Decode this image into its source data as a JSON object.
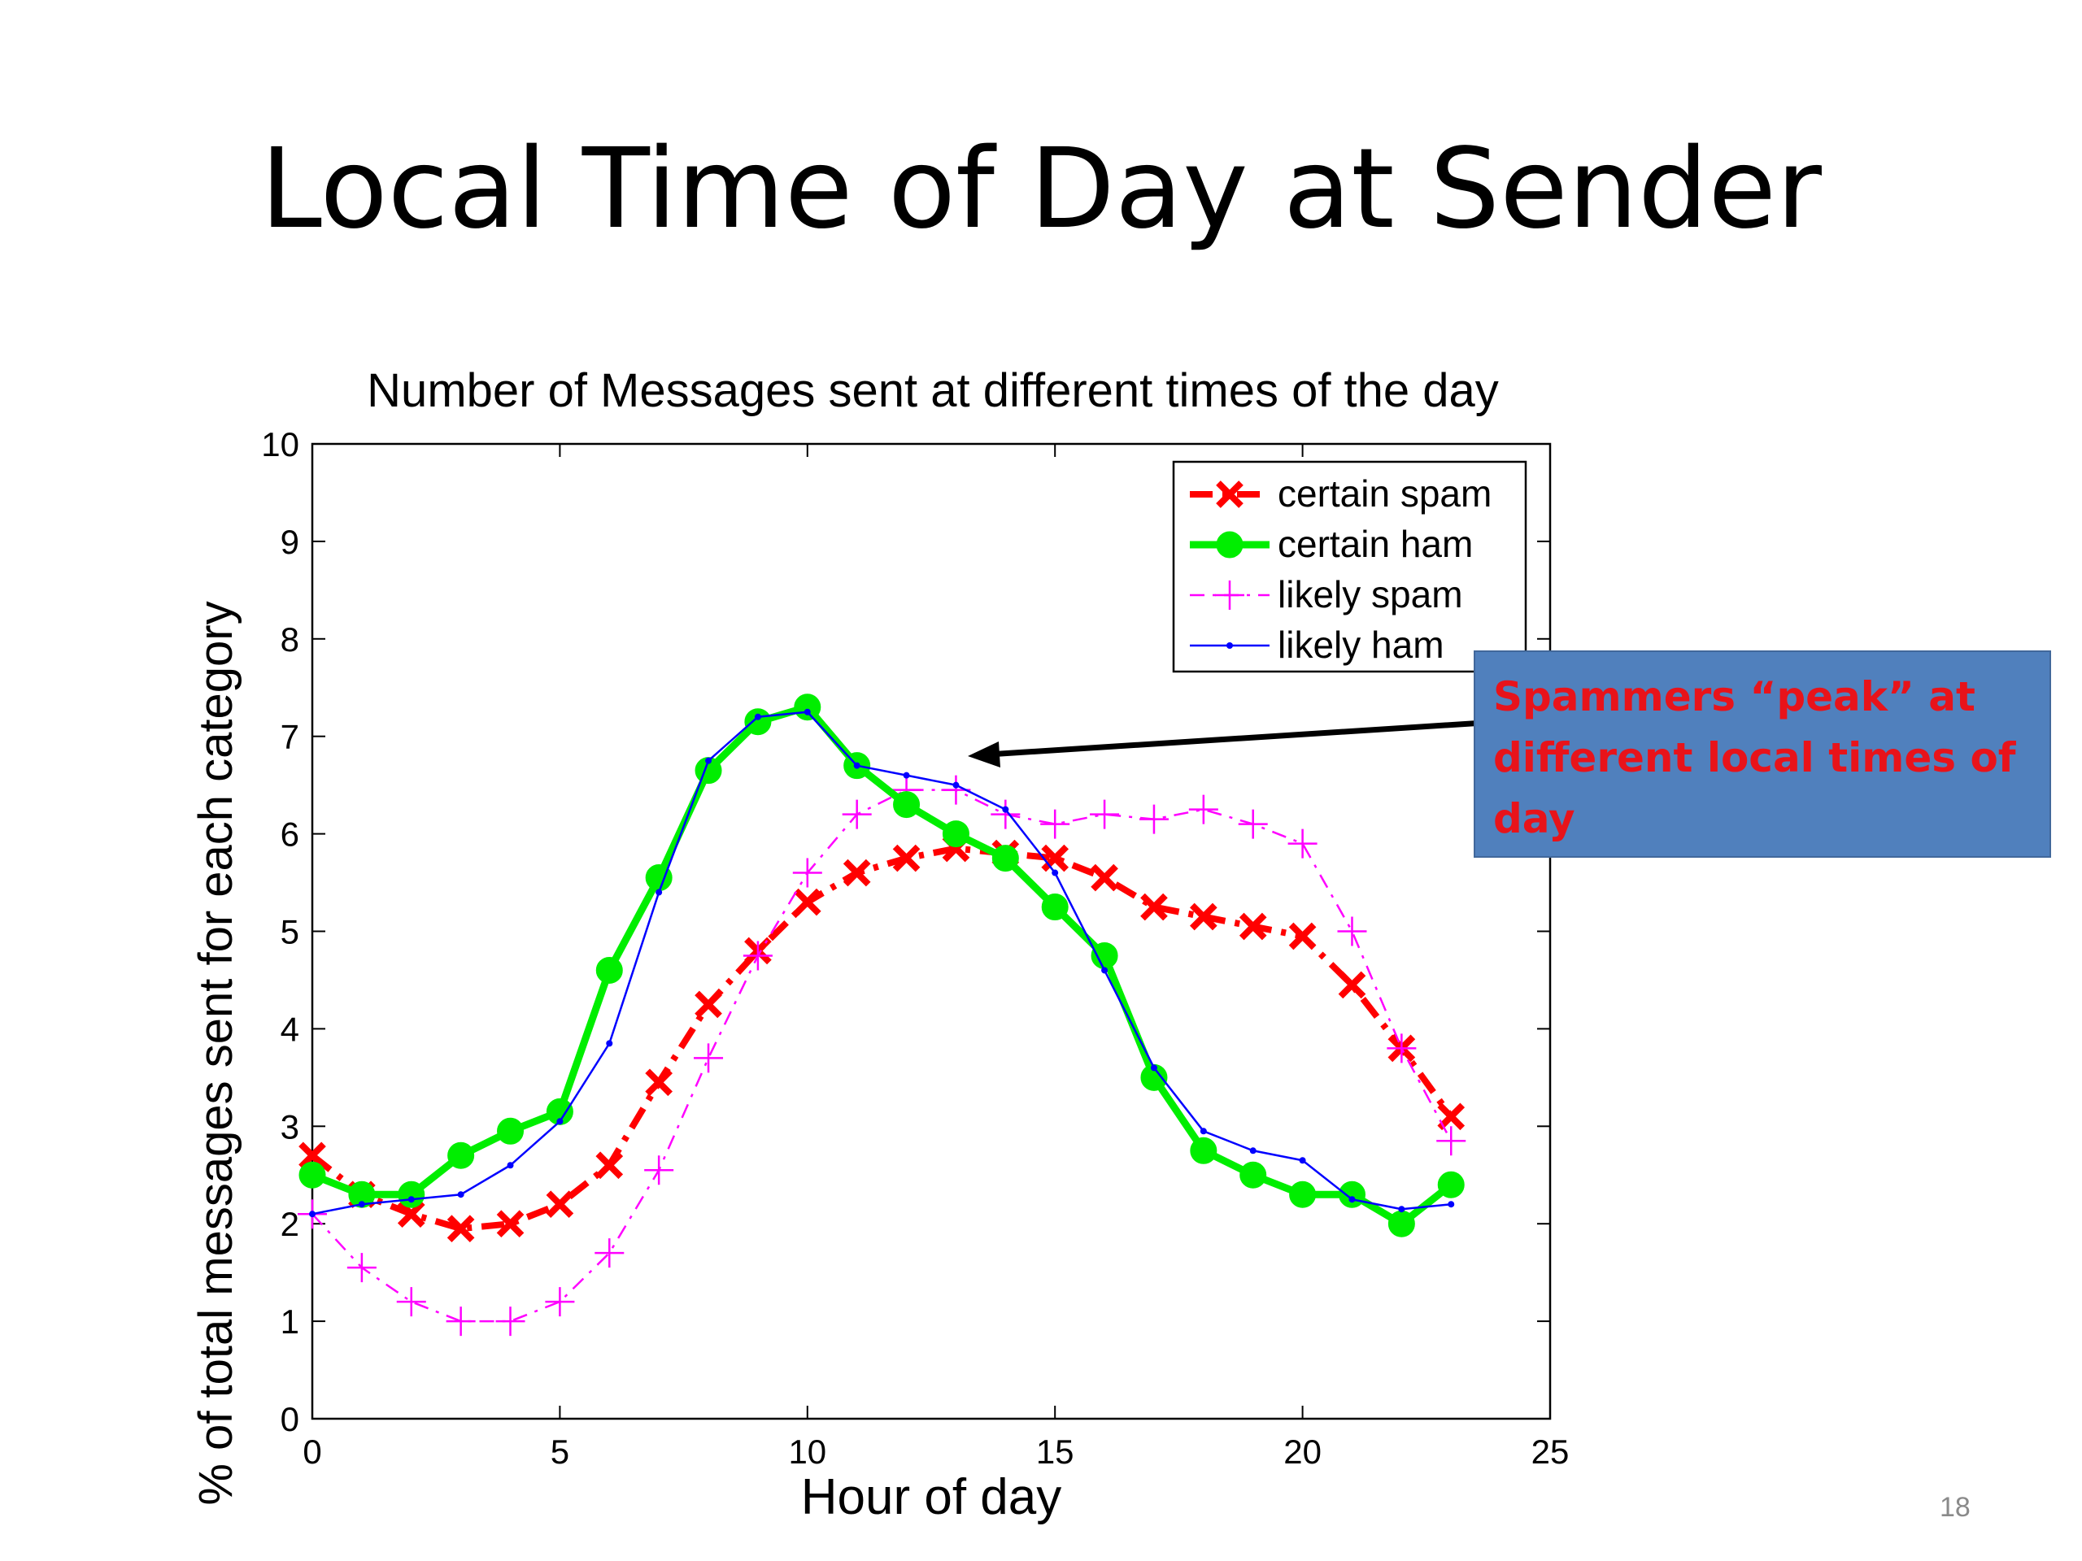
{
  "slide": {
    "title": "Local Time of Day at Sender",
    "page_number": "18",
    "callout": "Spammers “peak” at different local times of day"
  },
  "chart_data": {
    "type": "line",
    "title": "Number of Messages sent at different times of the day",
    "xlabel": "Hour of day",
    "ylabel": "% of total messages sent for each category",
    "xlim": [
      0,
      25
    ],
    "ylim": [
      0,
      10
    ],
    "xticks": [
      0,
      5,
      10,
      15,
      20,
      25
    ],
    "yticks": [
      0,
      1,
      2,
      3,
      4,
      5,
      6,
      7,
      8,
      9,
      10
    ],
    "grid": false,
    "legend_position": "top-right",
    "x": [
      0,
      1,
      2,
      3,
      4,
      5,
      6,
      7,
      8,
      9,
      10,
      11,
      12,
      13,
      14,
      15,
      16,
      17,
      18,
      19,
      20,
      21,
      22,
      23
    ],
    "series": [
      {
        "name": "certain spam",
        "color": "#ff0000",
        "style": "dashdot",
        "marker": "x",
        "values": [
          2.7,
          2.3,
          2.1,
          1.95,
          2.0,
          2.2,
          2.6,
          3.45,
          4.25,
          4.8,
          5.3,
          5.6,
          5.75,
          5.85,
          5.8,
          5.75,
          5.55,
          5.25,
          5.15,
          5.05,
          4.95,
          4.45,
          3.8,
          3.1
        ]
      },
      {
        "name": "certain ham",
        "color": "#00ee00",
        "style": "solid",
        "marker": "circle",
        "values": [
          2.5,
          2.3,
          2.3,
          2.7,
          2.95,
          3.15,
          4.6,
          5.55,
          6.65,
          7.15,
          7.3,
          6.7,
          6.3,
          6.0,
          5.75,
          5.25,
          4.75,
          3.5,
          2.75,
          2.5,
          2.3,
          2.3,
          2.0,
          2.4
        ]
      },
      {
        "name": "likely spam",
        "color": "#ff00ff",
        "style": "dashdot",
        "marker": "plus",
        "values": [
          2.1,
          1.55,
          1.2,
          1.0,
          1.0,
          1.2,
          1.7,
          2.55,
          3.7,
          4.75,
          5.6,
          6.2,
          6.45,
          6.45,
          6.2,
          6.1,
          6.2,
          6.15,
          6.25,
          6.1,
          5.9,
          5.0,
          3.8,
          2.85
        ]
      },
      {
        "name": "likely ham",
        "color": "#0000ff",
        "style": "solid",
        "marker": "dot",
        "values": [
          2.1,
          2.2,
          2.25,
          2.3,
          2.6,
          3.05,
          3.85,
          5.4,
          6.75,
          7.2,
          7.25,
          6.7,
          6.6,
          6.5,
          6.25,
          5.6,
          4.6,
          3.6,
          2.95,
          2.75,
          2.65,
          2.25,
          2.15,
          2.2
        ]
      }
    ]
  }
}
